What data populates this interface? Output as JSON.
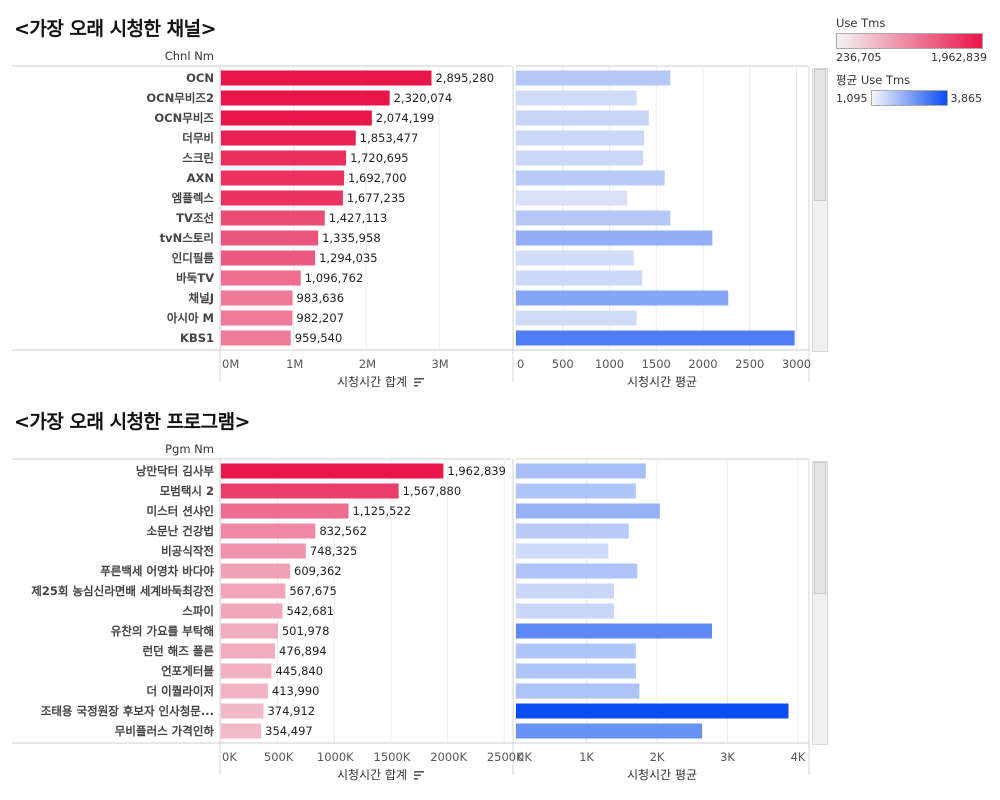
{
  "panels": [
    {
      "title": "<가장 오래 시청한 채널>",
      "dim_header": "Chnl Nm",
      "left_axis_title": "시청시간 합계",
      "right_axis_title": "시청시간 평균",
      "chart_data": {
        "type": "bar",
        "categories": [
          "OCN",
          "OCN무비즈2",
          "OCN무비즈",
          "더무비",
          "스크린",
          "AXN",
          "엠플렉스",
          "TV조선",
          "tvN스토리",
          "인디필름",
          "바둑TV",
          "채널J",
          "아시아 M",
          "KBS1"
        ],
        "series": [
          {
            "name": "시청시간 합계",
            "values": [
              2895280,
              2320074,
              2074199,
              1853477,
              1720695,
              1692700,
              1677235,
              1427113,
              1335958,
              1294035,
              1096762,
              983636,
              982207,
              959540
            ]
          },
          {
            "name": "시청시간 평균",
            "values": [
              1650,
              1290,
              1420,
              1370,
              1360,
              1590,
              1190,
              1650,
              2100,
              1260,
              1350,
              2270,
              1290,
              2980
            ]
          }
        ],
        "left_ticks": [
          {
            "v": 0,
            "label": "0M"
          },
          {
            "v": 1000000,
            "label": "1M"
          },
          {
            "v": 2000000,
            "label": "2M"
          },
          {
            "v": 3000000,
            "label": "3M"
          }
        ],
        "left_xlim": [
          0,
          3500000
        ],
        "right_ticks": [
          {
            "v": 0,
            "label": "0"
          },
          {
            "v": 500,
            "label": "500"
          },
          {
            "v": 1000,
            "label": "1000"
          },
          {
            "v": 1500,
            "label": "1500"
          },
          {
            "v": 2000,
            "label": "2000"
          },
          {
            "v": 2500,
            "label": "2500"
          },
          {
            "v": 3000,
            "label": "3000"
          }
        ],
        "right_xlim": [
          0,
          3100
        ],
        "data_labels": [
          "2,895,280",
          "2,320,074",
          "2,074,199",
          "1,853,477",
          "1,720,695",
          "1,692,700",
          "1,677,235",
          "1,427,113",
          "1,335,958",
          "1,294,035",
          "1,096,762",
          "983,636",
          "982,207",
          "959,540"
        ]
      }
    },
    {
      "title": "<가장 오래 시청한 프로그램>",
      "dim_header": "Pgm Nm",
      "left_axis_title": "시청시간 합계",
      "right_axis_title": "시청시간 평균",
      "chart_data": {
        "type": "bar",
        "categories": [
          "낭만닥터 김사부",
          "모범택시 2",
          "미스터 션샤인",
          "소문난 건강법",
          "비공식작전",
          "푸른백세 어영차 바다야",
          "제25회 농심신라면배 세계바둑최강전",
          "스파이",
          "유찬의 가요를 부탁해",
          "런던 해즈 폴른",
          "언포게터블",
          "더 이퀄라이저",
          "조태용 국정원장 후보자 인사청문...",
          "무비플러스 가격인하"
        ],
        "series": [
          {
            "name": "시청시간 합계",
            "values": [
              1962839,
              1567880,
              1125522,
              832562,
              748325,
              609362,
              567675,
              542681,
              501978,
              476894,
              445840,
              413990,
              374912,
              354497
            ]
          },
          {
            "name": "시청시간 평균",
            "values": [
              1840,
              1700,
              2040,
              1600,
              1310,
              1720,
              1390,
              1390,
              2780,
              1700,
              1700,
              1750,
              3865,
              2640
            ]
          }
        ],
        "left_ticks": [
          {
            "v": 0,
            "label": "0K"
          },
          {
            "v": 500000,
            "label": "500K"
          },
          {
            "v": 1000000,
            "label": "1000K"
          },
          {
            "v": 1500000,
            "label": "1500K"
          },
          {
            "v": 2000000,
            "label": "2000K"
          },
          {
            "v": 2500000,
            "label": "2500K"
          }
        ],
        "left_xlim": [
          0,
          2500000
        ],
        "right_ticks": [
          {
            "v": 0,
            "label": "0K"
          },
          {
            "v": 1000,
            "label": "1K"
          },
          {
            "v": 2000,
            "label": "2K"
          },
          {
            "v": 3000,
            "label": "3K"
          },
          {
            "v": 4000,
            "label": "4K"
          }
        ],
        "right_xlim": [
          0,
          4000
        ],
        "data_labels": [
          "1,962,839",
          "1,567,880",
          "1,125,522",
          "832,562",
          "748,325",
          "609,362",
          "567,675",
          "542,681",
          "501,978",
          "476,894",
          "445,840",
          "413,990",
          "374,912",
          "354,497"
        ]
      }
    }
  ],
  "legend": {
    "red": {
      "title": "Use Tms",
      "min": "236,705",
      "max": "1,962,839",
      "min_value": 236705,
      "max_value": 1962839,
      "color_low": "#f3f3f3",
      "color_high": "#e8154a"
    },
    "blue": {
      "title": "평균 Use Tms",
      "min": "1,095",
      "max": "3,865",
      "min_value": 1095,
      "max_value": 3865,
      "color_low": "#f6f6f8",
      "color_high": "#0a4df5"
    }
  },
  "sort_icon": "sort-descending-icon"
}
